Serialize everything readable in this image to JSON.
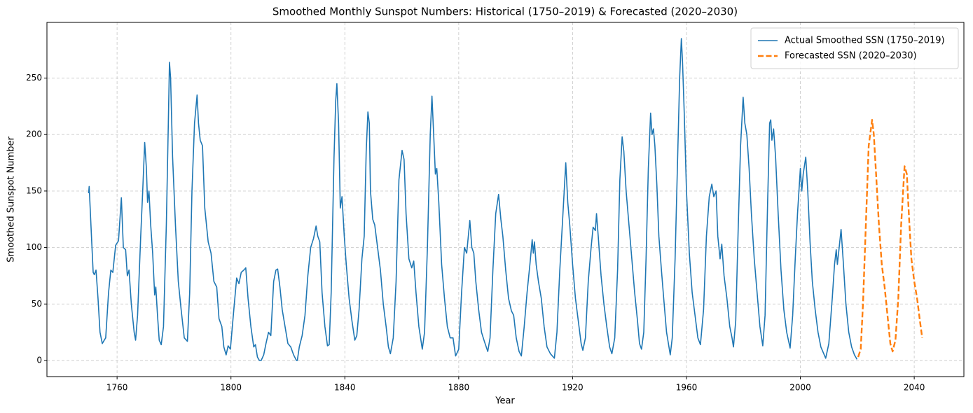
{
  "chart_data": {
    "type": "line",
    "title": "Smoothed Monthly Sunspot Numbers: Historical (1750–2019) & Forecasted (2020–2030)",
    "xlabel": "Year",
    "ylabel": "Smoothed Sunspot Number",
    "xlim": [
      1735.36,
      2057.44
    ],
    "xticks": [
      1760,
      1800,
      1840,
      1880,
      1920,
      1960,
      2000,
      2040
    ],
    "ylim": [
      -14.25,
      299.25
    ],
    "yticks": [
      0,
      50,
      100,
      150,
      200,
      250
    ],
    "grid": true,
    "legend": "upper right",
    "series": [
      {
        "name": "Actual Smoothed SSN (1750–2019)",
        "color": "#1f77b4",
        "linestyle": "solid",
        "x": [
          1750.0,
          1750.2,
          1751.0,
          1751.6,
          1752.0,
          1752.6,
          1753.3,
          1754.0,
          1754.8,
          1755.5,
          1756.0,
          1757.0,
          1757.8,
          1758.5,
          1759.5,
          1760.5,
          1761.5,
          1762.2,
          1763.0,
          1763.6,
          1764.2,
          1765.0,
          1766.0,
          1766.5,
          1767.2,
          1768.3,
          1769.0,
          1769.7,
          1770.3,
          1770.7,
          1771.2,
          1771.8,
          1772.5,
          1773.2,
          1773.6,
          1774.2,
          1774.8,
          1775.5,
          1776.3,
          1777.3,
          1778.0,
          1778.4,
          1778.8,
          1779.5,
          1780.5,
          1781.5,
          1782.5,
          1783.6,
          1784.7,
          1785.5,
          1786.3,
          1787.2,
          1788.1,
          1788.6,
          1789.2,
          1790.0,
          1790.8,
          1792.0,
          1793.0,
          1794.0,
          1795.0,
          1795.8,
          1796.8,
          1797.5,
          1798.3,
          1799.0,
          1799.8,
          1801.0,
          1802.0,
          1802.8,
          1803.6,
          1804.5,
          1805.2,
          1806.0,
          1807.0,
          1808.0,
          1808.6,
          1809.3,
          1810.0,
          1810.6,
          1811.5,
          1812.3,
          1813.2,
          1814.0,
          1815.0,
          1815.8,
          1816.4,
          1817.2,
          1818.0,
          1819.0,
          1820.0,
          1821.0,
          1822.0,
          1823.0,
          1823.3,
          1824.0,
          1825.0,
          1826.0,
          1827.0,
          1828.0,
          1829.0,
          1829.9,
          1830.5,
          1831.2,
          1832.0,
          1833.0,
          1833.9,
          1834.5,
          1835.2,
          1836.2,
          1836.8,
          1837.2,
          1837.8,
          1838.4,
          1839.0,
          1839.8,
          1840.5,
          1841.5,
          1842.5,
          1843.5,
          1844.2,
          1845.0,
          1846.0,
          1846.8,
          1847.5,
          1848.1,
          1848.6,
          1849.0,
          1849.8,
          1850.5,
          1851.5,
          1852.5,
          1853.5,
          1854.5,
          1855.3,
          1856.0,
          1857.0,
          1858.0,
          1859.0,
          1860.1,
          1860.8,
          1861.5,
          1862.5,
          1863.5,
          1864.2,
          1865.0,
          1866.0,
          1867.2,
          1868.0,
          1869.0,
          1870.0,
          1870.6,
          1871.2,
          1871.8,
          1872.3,
          1873.0,
          1874.0,
          1875.0,
          1876.0,
          1877.0,
          1878.0,
          1878.9,
          1880.0,
          1881.0,
          1882.0,
          1882.8,
          1883.9,
          1884.6,
          1885.3,
          1886.0,
          1887.0,
          1888.0,
          1889.0,
          1890.2,
          1891.0,
          1892.0,
          1893.0,
          1894.0,
          1894.8,
          1895.5,
          1896.5,
          1897.5,
          1898.5,
          1899.3,
          1900.2,
          1901.2,
          1902.0,
          1903.0,
          1904.0,
          1905.0,
          1905.8,
          1906.2,
          1906.6,
          1907.2,
          1908.0,
          1909.0,
          1910.0,
          1911.0,
          1912.2,
          1913.6,
          1914.5,
          1915.5,
          1916.5,
          1917.6,
          1918.3,
          1919.0,
          1920.0,
          1921.0,
          1922.0,
          1923.0,
          1923.6,
          1924.5,
          1925.5,
          1926.5,
          1927.2,
          1928.0,
          1928.4,
          1929.0,
          1930.0,
          1931.0,
          1932.0,
          1933.0,
          1933.8,
          1934.8,
          1935.8,
          1936.6,
          1937.4,
          1938.0,
          1938.8,
          1939.8,
          1940.8,
          1941.8,
          1942.8,
          1943.5,
          1944.2,
          1945.0,
          1945.8,
          1946.6,
          1947.4,
          1947.9,
          1948.4,
          1948.9,
          1949.6,
          1950.3,
          1951.2,
          1952.0,
          1953.0,
          1954.3,
          1955.0,
          1956.0,
          1957.0,
          1957.6,
          1958.2,
          1958.6,
          1959.2,
          1960.0,
          1961.0,
          1962.0,
          1963.0,
          1964.0,
          1964.9,
          1966.0,
          1967.0,
          1968.0,
          1968.9,
          1969.6,
          1970.4,
          1971.0,
          1971.8,
          1972.4,
          1973.2,
          1974.2,
          1975.2,
          1976.0,
          1976.5,
          1977.3,
          1978.2,
          1979.0,
          1979.9,
          1980.5,
          1981.2,
          1982.0,
          1982.8,
          1983.8,
          1984.8,
          1985.8,
          1986.8,
          1987.6,
          1988.5,
          1989.2,
          1989.6,
          1990.0,
          1990.6,
          1991.3,
          1992.2,
          1993.2,
          1994.2,
          1995.2,
          1996.4,
          1997.3,
          1998.2,
          1999.0,
          2000.0,
          2000.5,
          2001.0,
          2001.9,
          2002.6,
          2003.4,
          2004.2,
          2005.2,
          2006.2,
          2007.2,
          2008.9,
          2010.0,
          2011.2,
          2012.0,
          2012.6,
          2013.0,
          2014.3,
          2015.0,
          2016.0,
          2017.0,
          2018.0,
          2019.0,
          2019.9
        ],
        "values": [
          148,
          154,
          110,
          78,
          76,
          80,
          55,
          25,
          15,
          18,
          20,
          60,
          80,
          78,
          102,
          106,
          144,
          100,
          98,
          75,
          80,
          50,
          25,
          18,
          40,
          110,
          150,
          193,
          170,
          140,
          150,
          120,
          95,
          58,
          65,
          40,
          18,
          14,
          30,
          120,
          210,
          264,
          250,
          180,
          120,
          70,
          45,
          20,
          17,
          60,
          150,
          210,
          235,
          210,
          195,
          190,
          135,
          105,
          95,
          70,
          65,
          37,
          30,
          12,
          5,
          13,
          10,
          45,
          73,
          68,
          78,
          80,
          82,
          55,
          30,
          12,
          14,
          3,
          0,
          0,
          5,
          15,
          25,
          22,
          70,
          80,
          81,
          65,
          45,
          30,
          15,
          12,
          5,
          0,
          0,
          12,
          22,
          40,
          75,
          100,
          108,
          119,
          110,
          105,
          60,
          30,
          13,
          14,
          60,
          180,
          230,
          245,
          210,
          135,
          145,
          110,
          85,
          55,
          35,
          18,
          22,
          45,
          90,
          110,
          185,
          220,
          210,
          150,
          125,
          120,
          100,
          80,
          50,
          30,
          12,
          6,
          20,
          70,
          160,
          186,
          178,
          130,
          90,
          82,
          88,
          60,
          30,
          10,
          25,
          100,
          200,
          234,
          200,
          165,
          170,
          140,
          85,
          55,
          30,
          20,
          20,
          4,
          10,
          60,
          100,
          95,
          124,
          100,
          95,
          70,
          45,
          25,
          17,
          8,
          20,
          80,
          130,
          147,
          125,
          110,
          80,
          55,
          44,
          40,
          20,
          8,
          4,
          30,
          60,
          85,
          107,
          95,
          105,
          85,
          70,
          55,
          30,
          12,
          6,
          2,
          25,
          80,
          125,
          175,
          140,
          120,
          85,
          55,
          35,
          15,
          9,
          20,
          70,
          100,
          118,
          115,
          130,
          110,
          75,
          50,
          30,
          12,
          6,
          20,
          80,
          160,
          198,
          185,
          150,
          120,
          90,
          60,
          35,
          15,
          10,
          25,
          90,
          170,
          219,
          200,
          205,
          190,
          155,
          110,
          80,
          55,
          25,
          5,
          20,
          90,
          190,
          250,
          285,
          265,
          220,
          150,
          95,
          60,
          40,
          20,
          14,
          45,
          110,
          145,
          156,
          145,
          150,
          110,
          90,
          103,
          75,
          55,
          30,
          20,
          12,
          35,
          120,
          190,
          233,
          210,
          200,
          170,
          130,
          90,
          60,
          30,
          13,
          40,
          140,
          210,
          213,
          195,
          205,
          180,
          130,
          80,
          45,
          25,
          11,
          40,
          90,
          130,
          170,
          150,
          165,
          180,
          150,
          105,
          70,
          45,
          25,
          12,
          2,
          15,
          55,
          85,
          98,
          85,
          116,
          90,
          50,
          25,
          12,
          5,
          1
        ]
      },
      {
        "name": "Forecasted SSN (2020–2030)",
        "color": "#ff7f0e",
        "linestyle": "dashed",
        "x": [
          2020.3,
          2021.2,
          2022.0,
          2023.0,
          2024.0,
          2025.2,
          2025.8,
          2026.6,
          2027.6,
          2028.6,
          2029.6,
          2030.6,
          2031.6,
          2032.4,
          2033.4,
          2034.4,
          2035.4,
          2036.6,
          2037.4,
          2038.2,
          2039.0,
          2040.0,
          2041.0,
          2042.0,
          2042.8
        ],
        "values": [
          3,
          10,
          50,
          120,
          190,
          213,
          200,
          165,
          120,
          85,
          65,
          40,
          15,
          8,
          18,
          55,
          120,
          172,
          165,
          125,
          90,
          70,
          55,
          35,
          20
        ]
      }
    ]
  }
}
